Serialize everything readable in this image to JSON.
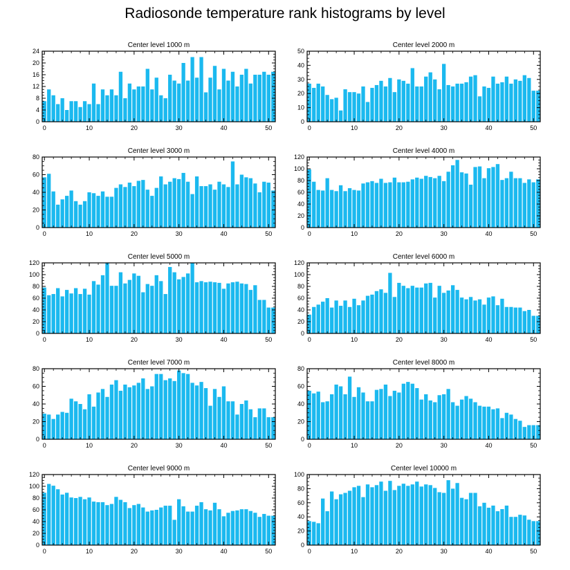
{
  "title": "Radiosonde temperature rank histograms by level",
  "bar_color": "#1bb9ef",
  "chart_data": [
    {
      "type": "bar",
      "title": "Center level 1000 m",
      "xlabel": "",
      "ylabel": "",
      "xlim": [
        -0.5,
        51.5
      ],
      "xticks": [
        0,
        10,
        20,
        30,
        40,
        50
      ],
      "ylim": [
        0,
        24
      ],
      "yticks": [
        0,
        4,
        8,
        12,
        16,
        20,
        24
      ],
      "values": [
        7,
        11,
        9,
        6,
        8,
        4,
        7,
        7,
        5,
        7,
        6,
        13,
        6,
        11,
        9,
        11,
        9,
        17,
        8,
        13,
        11,
        12,
        12,
        18,
        11,
        15,
        9,
        8,
        16,
        14,
        13,
        20,
        14,
        22,
        15,
        22,
        10,
        15,
        19,
        11,
        18,
        14,
        17,
        12,
        16,
        18,
        13,
        16,
        16,
        17,
        16,
        17
      ]
    },
    {
      "type": "bar",
      "title": "Center level 2000 m",
      "xlabel": "",
      "ylabel": "",
      "xlim": [
        -0.5,
        51.5
      ],
      "xticks": [
        0,
        10,
        20,
        30,
        40,
        50
      ],
      "ylim": [
        0,
        50
      ],
      "yticks": [
        0,
        10,
        20,
        30,
        40,
        50
      ],
      "values": [
        27,
        24,
        27,
        25,
        19,
        16,
        17,
        8,
        23,
        21,
        21,
        20,
        25,
        14,
        24,
        26,
        29,
        25,
        31,
        21,
        30,
        29,
        27,
        38,
        25,
        25,
        32,
        35,
        30,
        23,
        41,
        26,
        25,
        27,
        27,
        28,
        32,
        33,
        18,
        25,
        24,
        32,
        27,
        28,
        32,
        27,
        30,
        29,
        33,
        31,
        22,
        22
      ]
    },
    {
      "type": "bar",
      "title": "Center level 3000 m",
      "xlabel": "",
      "ylabel": "",
      "xlim": [
        -0.5,
        51.5
      ],
      "xticks": [
        0,
        10,
        20,
        30,
        40,
        50
      ],
      "ylim": [
        0,
        80
      ],
      "yticks": [
        0,
        20,
        40,
        60,
        80
      ],
      "values": [
        57,
        61,
        41,
        26,
        32,
        36,
        42,
        30,
        26,
        30,
        40,
        39,
        36,
        41,
        35,
        35,
        45,
        49,
        46,
        51,
        47,
        53,
        54,
        43,
        36,
        45,
        58,
        49,
        52,
        56,
        55,
        62,
        52,
        38,
        58,
        47,
        47,
        49,
        43,
        52,
        49,
        46,
        75,
        49,
        60,
        57,
        56,
        50,
        40,
        52,
        51,
        42
      ]
    },
    {
      "type": "bar",
      "title": "Center level 4000 m",
      "xlabel": "",
      "ylabel": "",
      "xlim": [
        -0.5,
        51.5
      ],
      "xticks": [
        0,
        10,
        20,
        30,
        40,
        50
      ],
      "ylim": [
        0,
        120
      ],
      "yticks": [
        0,
        20,
        40,
        60,
        80,
        100,
        120
      ],
      "values": [
        99,
        78,
        64,
        63,
        84,
        64,
        62,
        72,
        62,
        67,
        64,
        63,
        75,
        77,
        79,
        76,
        83,
        76,
        77,
        85,
        77,
        77,
        78,
        82,
        85,
        83,
        88,
        86,
        84,
        88,
        79,
        95,
        106,
        115,
        94,
        92,
        73,
        103,
        104,
        84,
        101,
        103,
        108,
        81,
        84,
        95,
        84,
        84,
        76,
        82,
        77,
        82
      ]
    },
    {
      "type": "bar",
      "title": "Center level 5000 m",
      "xlabel": "",
      "ylabel": "",
      "xlim": [
        -0.5,
        51.5
      ],
      "xticks": [
        0,
        10,
        20,
        30,
        40,
        50
      ],
      "ylim": [
        0,
        120
      ],
      "yticks": [
        0,
        20,
        40,
        60,
        80,
        100,
        120
      ],
      "values": [
        78,
        65,
        67,
        77,
        63,
        74,
        68,
        77,
        67,
        76,
        66,
        89,
        83,
        99,
        120,
        81,
        81,
        104,
        85,
        91,
        102,
        98,
        70,
        84,
        81,
        99,
        89,
        67,
        113,
        104,
        92,
        96,
        102,
        120,
        87,
        89,
        87,
        88,
        87,
        86,
        76,
        85,
        87,
        88,
        85,
        84,
        74,
        82,
        57,
        57,
        44,
        44
      ]
    },
    {
      "type": "bar",
      "title": "Center level 6000 m",
      "xlabel": "",
      "ylabel": "",
      "xlim": [
        -0.5,
        51.5
      ],
      "xticks": [
        0,
        10,
        20,
        30,
        40,
        50
      ],
      "ylim": [
        0,
        120
      ],
      "yticks": [
        0,
        20,
        40,
        60,
        80,
        100,
        120
      ],
      "values": [
        32,
        45,
        49,
        54,
        60,
        44,
        56,
        47,
        56,
        45,
        59,
        48,
        56,
        64,
        66,
        72,
        75,
        69,
        103,
        62,
        86,
        81,
        77,
        81,
        78,
        78,
        85,
        86,
        61,
        81,
        69,
        73,
        82,
        74,
        61,
        58,
        62,
        56,
        58,
        49,
        61,
        63,
        48,
        59,
        45,
        45,
        44,
        44,
        38,
        40,
        30,
        30
      ]
    },
    {
      "type": "bar",
      "title": "Center level 7000 m",
      "xlabel": "",
      "ylabel": "",
      "xlim": [
        -0.5,
        51.5
      ],
      "xticks": [
        0,
        10,
        20,
        30,
        40,
        50
      ],
      "ylim": [
        0,
        80
      ],
      "yticks": [
        0,
        20,
        40,
        60,
        80
      ],
      "values": [
        29,
        28,
        23,
        28,
        31,
        30,
        46,
        43,
        40,
        34,
        51,
        37,
        53,
        57,
        48,
        62,
        67,
        55,
        62,
        59,
        61,
        64,
        69,
        57,
        60,
        74,
        74,
        67,
        69,
        66,
        78,
        75,
        74,
        64,
        61,
        65,
        58,
        38,
        57,
        48,
        60,
        43,
        43,
        28,
        40,
        44,
        34,
        25,
        35,
        35,
        25,
        25
      ]
    },
    {
      "type": "bar",
      "title": "Center level 8000 m",
      "xlabel": "",
      "ylabel": "",
      "xlim": [
        -0.5,
        51.5
      ],
      "xticks": [
        0,
        10,
        20,
        30,
        40,
        50
      ],
      "ylim": [
        0,
        80
      ],
      "yticks": [
        0,
        20,
        40,
        60,
        80
      ],
      "values": [
        55,
        52,
        54,
        42,
        43,
        51,
        62,
        60,
        51,
        71,
        48,
        59,
        53,
        43,
        43,
        56,
        57,
        62,
        49,
        55,
        53,
        63,
        65,
        63,
        58,
        45,
        51,
        44,
        42,
        50,
        51,
        57,
        42,
        38,
        45,
        49,
        46,
        42,
        38,
        37,
        37,
        34,
        35,
        24,
        30,
        28,
        23,
        21,
        14,
        16,
        16,
        16
      ]
    },
    {
      "type": "bar",
      "title": "Center level 9000 m",
      "xlabel": "",
      "ylabel": "",
      "xlim": [
        -0.5,
        51.5
      ],
      "xticks": [
        0,
        10,
        20,
        30,
        40,
        50
      ],
      "ylim": [
        0,
        120
      ],
      "yticks": [
        0,
        20,
        40,
        60,
        80,
        100,
        120
      ],
      "values": [
        89,
        104,
        101,
        95,
        86,
        89,
        81,
        80,
        82,
        78,
        81,
        74,
        73,
        73,
        68,
        70,
        82,
        77,
        73,
        63,
        68,
        70,
        64,
        57,
        59,
        60,
        64,
        67,
        67,
        43,
        78,
        66,
        57,
        57,
        67,
        73,
        61,
        59,
        72,
        61,
        49,
        55,
        58,
        59,
        61,
        61,
        58,
        55,
        48,
        53,
        50,
        50
      ]
    },
    {
      "type": "bar",
      "title": "Center level 10000 m",
      "xlabel": "",
      "ylabel": "",
      "xlim": [
        -0.5,
        51.5
      ],
      "xticks": [
        0,
        10,
        20,
        30,
        40,
        50
      ],
      "ylim": [
        0,
        100
      ],
      "yticks": [
        0,
        20,
        40,
        60,
        80,
        100
      ],
      "values": [
        34,
        33,
        31,
        66,
        48,
        76,
        65,
        72,
        74,
        77,
        82,
        84,
        68,
        86,
        82,
        85,
        90,
        77,
        91,
        78,
        84,
        87,
        84,
        86,
        90,
        83,
        86,
        85,
        81,
        75,
        74,
        92,
        80,
        88,
        67,
        65,
        74,
        74,
        55,
        60,
        53,
        56,
        48,
        51,
        56,
        40,
        40,
        43,
        42,
        36,
        34,
        34
      ]
    }
  ]
}
